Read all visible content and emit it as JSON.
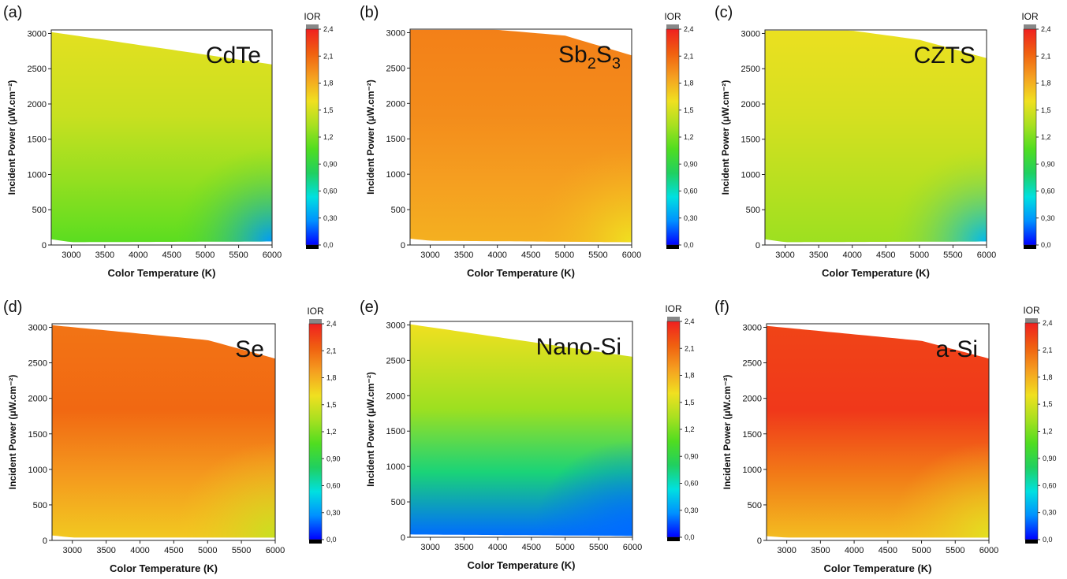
{
  "figure": {
    "colorbar_values": [
      "2,4",
      "2,1",
      "1,8",
      "1,5",
      "1,2",
      "0,90",
      "0,60",
      "0,30",
      "0,0"
    ],
    "colorbar_label": "IOR",
    "colorscale": [
      "#0000ff",
      "#0090ff",
      "#00e0e0",
      "#20d060",
      "#50dd20",
      "#a8e020",
      "#f0e020",
      "#f5a020",
      "#f06010",
      "#f02020"
    ]
  },
  "chart_data": [
    {
      "type": "heatmap",
      "panel_label": "(a)",
      "material": "CdTe",
      "material_sub": "",
      "title": "",
      "xlabel": "Color Temperature (K)",
      "ylabel": "Incident Power (μW.cm⁻²)",
      "x_ticks": [
        "3000",
        "3500",
        "4000",
        "4500",
        "5000",
        "5500",
        "6000"
      ],
      "y_ticks": [
        "0",
        "500",
        "1000",
        "1500",
        "2000",
        "2500",
        "3000"
      ],
      "xlim": [
        2700,
        6000
      ],
      "ylim": [
        0,
        3050
      ],
      "upper_edge": [
        [
          2700,
          3020
        ],
        [
          6000,
          2560
        ]
      ],
      "lower_edge": [
        [
          2700,
          80
        ],
        [
          3000,
          40
        ],
        [
          6000,
          50
        ]
      ],
      "zlim": [
        0,
        2.4
      ],
      "ior_values": {
        "top": 1.55,
        "mid": 1.45,
        "bottom": 1.1,
        "high_ct_low_power": 0.3
      }
    },
    {
      "type": "heatmap",
      "panel_label": "(b)",
      "material": "Sb",
      "material_sub": "2",
      "material2": "S",
      "material_sub2": "3",
      "title": "",
      "xlabel": "Color Temperature (K)",
      "ylabel": "Incident Power (μW.cm⁻²)",
      "x_ticks": [
        "3000",
        "3500",
        "4000",
        "4500",
        "5000",
        "5500",
        "6000"
      ],
      "y_ticks": [
        "0",
        "500",
        "1000",
        "1500",
        "2000",
        "2500",
        "3000"
      ],
      "xlim": [
        2700,
        6000
      ],
      "ylim": [
        0,
        3050
      ],
      "upper_edge": [
        [
          2700,
          3040
        ],
        [
          4000,
          3040
        ],
        [
          5000,
          2960
        ],
        [
          6000,
          2680
        ]
      ],
      "lower_edge": [
        [
          2700,
          90
        ],
        [
          3000,
          60
        ],
        [
          6000,
          40
        ]
      ],
      "zlim": [
        0,
        2.4
      ],
      "ior_values": {
        "top": 2.0,
        "mid": 1.95,
        "bottom": 1.8,
        "high_ct_low_power": 1.6
      }
    },
    {
      "type": "heatmap",
      "panel_label": "(c)",
      "material": "CZTS",
      "material_sub": "",
      "title": "",
      "xlabel": "Color Temperature (K)",
      "ylabel": "Incident Power (μW.cm⁻²)",
      "x_ticks": [
        "3000",
        "3500",
        "4000",
        "4500",
        "5000",
        "5500",
        "6000"
      ],
      "y_ticks": [
        "0",
        "500",
        "1000",
        "1500",
        "2000",
        "2500",
        "3000"
      ],
      "xlim": [
        2700,
        6000
      ],
      "ylim": [
        0,
        3050
      ],
      "upper_edge": [
        [
          2700,
          3040
        ],
        [
          4000,
          3040
        ],
        [
          5000,
          2910
        ],
        [
          6000,
          2650
        ]
      ],
      "lower_edge": [
        [
          2700,
          80
        ],
        [
          3000,
          40
        ],
        [
          6000,
          50
        ]
      ],
      "zlim": [
        0,
        2.4
      ],
      "ior_values": {
        "top": 1.58,
        "mid": 1.5,
        "bottom": 1.3,
        "high_ct_low_power": 0.4
      }
    },
    {
      "type": "heatmap",
      "panel_label": "(d)",
      "material": "Se",
      "material_sub": "",
      "title": "",
      "xlabel": "Color Temperature (K)",
      "ylabel": "Incident Power (μW.cm⁻²)",
      "x_ticks": [
        "3000",
        "3500",
        "4000",
        "4500",
        "5000",
        "5500",
        "6000"
      ],
      "y_ticks": [
        "0",
        "500",
        "1000",
        "1500",
        "2000",
        "2500",
        "3000"
      ],
      "xlim": [
        2700,
        6000
      ],
      "ylim": [
        0,
        3050
      ],
      "upper_edge": [
        [
          2700,
          3030
        ],
        [
          5000,
          2820
        ],
        [
          6000,
          2560
        ]
      ],
      "lower_edge": [
        [
          2700,
          70
        ],
        [
          3000,
          40
        ],
        [
          6000,
          40
        ]
      ],
      "zlim": [
        0,
        2.4
      ],
      "ior_values": {
        "top": 2.05,
        "mid": 2.1,
        "bottom": 1.7,
        "high_ct_low_power": 1.45
      }
    },
    {
      "type": "heatmap",
      "panel_label": "(e)",
      "material": "Nano-Si",
      "material_sub": "",
      "title": "",
      "xlabel": "Color Temperature (K)",
      "ylabel": "Incident Power (μW.cm⁻²)",
      "x_ticks": [
        "3000",
        "3500",
        "4000",
        "4500",
        "5000",
        "5500",
        "6000"
      ],
      "y_ticks": [
        "0",
        "500",
        "1000",
        "1500",
        "2000",
        "2500",
        "3000"
      ],
      "xlim": [
        2700,
        6000
      ],
      "ylim": [
        0,
        3050
      ],
      "upper_edge": [
        [
          2700,
          3010
        ],
        [
          6000,
          2550
        ]
      ],
      "lower_edge": [
        [
          2700,
          40
        ],
        [
          6000,
          20
        ]
      ],
      "zlim": [
        0,
        2.4
      ],
      "ior_values": {
        "top": 1.6,
        "mid": 1.3,
        "bottom": 0.2,
        "high_ct_low_power": 0.2
      }
    },
    {
      "type": "heatmap",
      "panel_label": "(f)",
      "material": "a-Si",
      "material_sub": "",
      "title": "",
      "xlabel": "Color Temperature (K)",
      "ylabel": "Incident Power (μW.cm⁻²)",
      "x_ticks": [
        "3000",
        "3500",
        "4000",
        "4500",
        "5000",
        "5500",
        "6000"
      ],
      "y_ticks": [
        "0",
        "500",
        "1000",
        "1500",
        "2000",
        "2500",
        "3000"
      ],
      "xlim": [
        2700,
        6000
      ],
      "ylim": [
        0,
        3050
      ],
      "upper_edge": [
        [
          2700,
          3020
        ],
        [
          5000,
          2810
        ],
        [
          6000,
          2560
        ]
      ],
      "lower_edge": [
        [
          2700,
          60
        ],
        [
          3000,
          40
        ],
        [
          6000,
          40
        ]
      ],
      "zlim": [
        0,
        2.4
      ],
      "ior_values": {
        "top": 2.25,
        "mid": 2.3,
        "bottom": 1.75,
        "high_ct_low_power": 1.55
      }
    }
  ]
}
